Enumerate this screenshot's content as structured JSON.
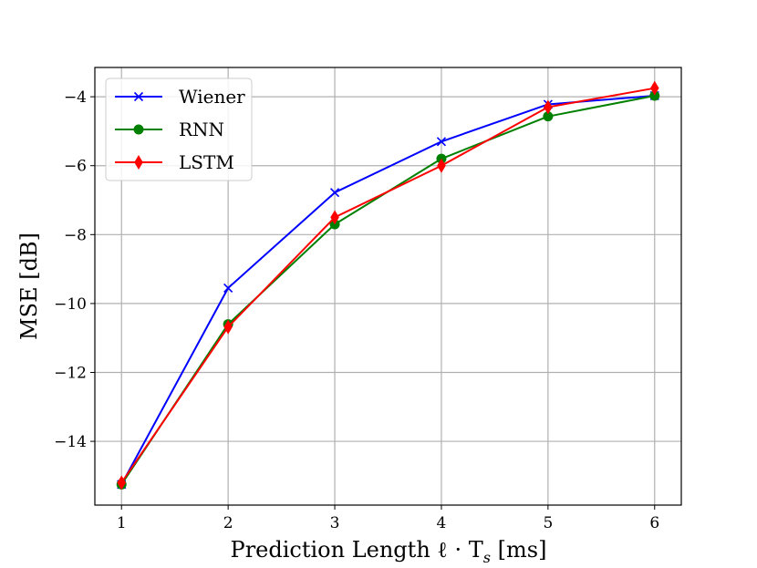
{
  "chart_data": {
    "type": "line",
    "title": "",
    "xlabel": "Prediction Length ℓ · T",
    "xlabel_sub": "s",
    "xlabel_unit": " [ms]",
    "ylabel": "MSE [dB]",
    "x": [
      1,
      2,
      3,
      4,
      5,
      6
    ],
    "xlim": [
      0.75,
      6.25
    ],
    "ylim": [
      -15.85,
      -3.15
    ],
    "xticks": [
      1,
      2,
      3,
      4,
      5,
      6
    ],
    "yticks": [
      -14,
      -12,
      -10,
      -8,
      -6,
      -4
    ],
    "xtick_labels": [
      "1",
      "2",
      "3",
      "4",
      "5",
      "6"
    ],
    "ytick_labels": [
      "−14",
      "−12",
      "−10",
      "−8",
      "−6",
      "−4"
    ],
    "grid": true,
    "legend_position": "top-left",
    "series": [
      {
        "name": "Wiener",
        "color": "#0000ff",
        "marker": "x",
        "values": [
          -15.25,
          -9.55,
          -6.78,
          -5.3,
          -4.22,
          -3.97
        ]
      },
      {
        "name": "RNN",
        "color": "#008000",
        "marker": "circle",
        "values": [
          -15.25,
          -10.6,
          -7.7,
          -5.8,
          -4.57,
          -3.97
        ]
      },
      {
        "name": "LSTM",
        "color": "#ff0000",
        "marker": "diamond",
        "values": [
          -15.2,
          -10.68,
          -7.5,
          -6.0,
          -4.3,
          -3.75
        ]
      }
    ]
  }
}
